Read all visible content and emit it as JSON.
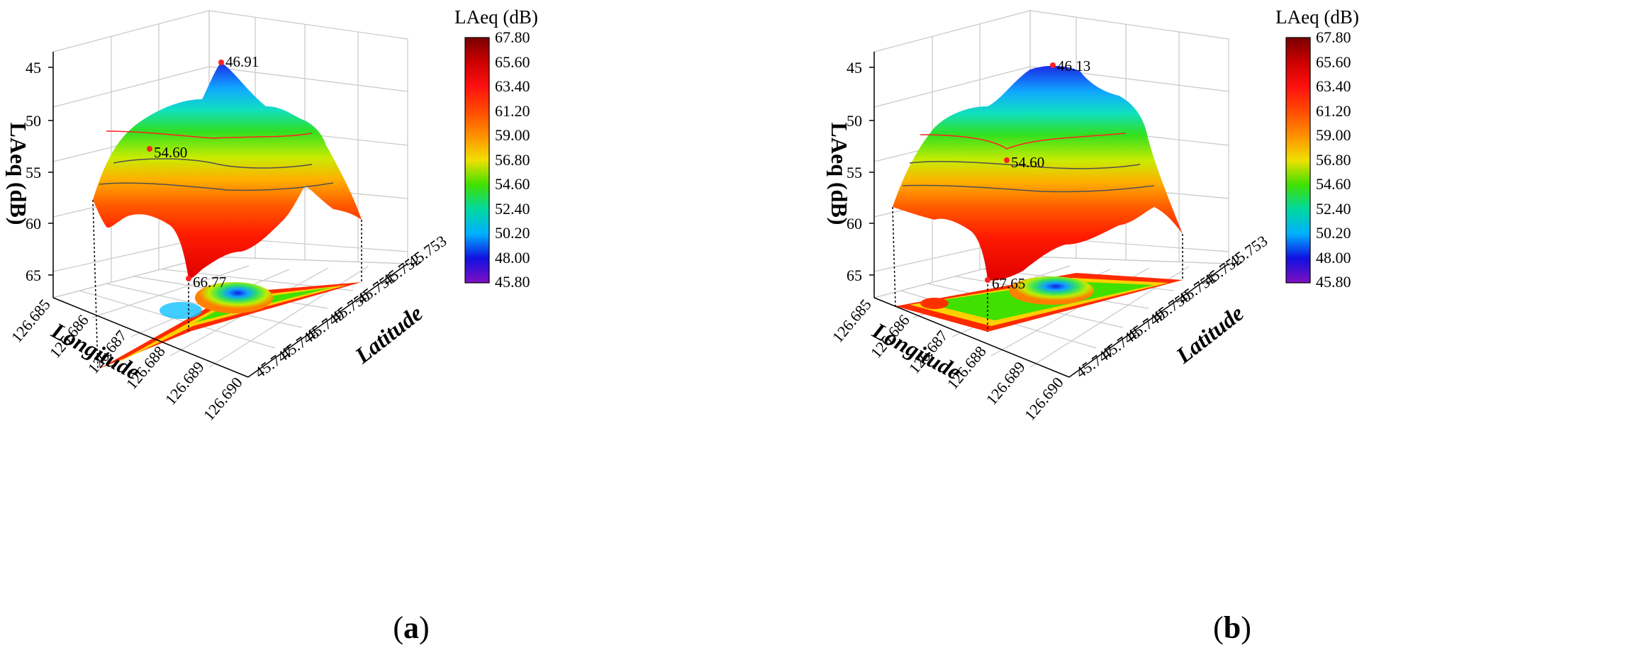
{
  "chart_data": [
    {
      "type": "surface3d",
      "panel_label": "a",
      "colorbar_title": "LAeq (dB)",
      "colorbar_ticks": [
        "67.80",
        "65.60",
        "63.40",
        "61.20",
        "59.00",
        "56.80",
        "54.60",
        "52.40",
        "50.20",
        "48.00",
        "45.80"
      ],
      "colorbar_range": [
        45.8,
        67.8
      ],
      "z_label": "LAeq (dB)",
      "z_ticks": [
        "45",
        "50",
        "55",
        "60",
        "65"
      ],
      "z_reversed": true,
      "x_label": "Longitude",
      "x_ticks": [
        "126.685",
        "126.686",
        "126.687",
        "126.688",
        "126.689",
        "126.690"
      ],
      "y_label": "Latitude",
      "y_ticks": [
        "45.753",
        "45.752",
        "45.751",
        "45.750",
        "45.749",
        "45.748",
        "45.747"
      ],
      "annotations": [
        {
          "label": "46.91",
          "value": 46.91
        },
        {
          "label": "54.60",
          "value": 54.6
        },
        {
          "label": "66.77",
          "value": 66.77
        }
      ]
    },
    {
      "type": "surface3d",
      "panel_label": "b",
      "colorbar_title": "LAeq (dB)",
      "colorbar_ticks": [
        "67.80",
        "65.60",
        "63.40",
        "61.20",
        "59.00",
        "56.80",
        "54.60",
        "52.40",
        "50.20",
        "48.00",
        "45.80"
      ],
      "colorbar_range": [
        45.8,
        67.8
      ],
      "z_label": "LAeq (dB)",
      "z_ticks": [
        "45",
        "50",
        "55",
        "60",
        "65"
      ],
      "z_reversed": true,
      "x_label": "Longitude",
      "x_ticks": [
        "126.685",
        "126.686",
        "126.687",
        "126.688",
        "126.689",
        "126.690"
      ],
      "y_label": "Latitude",
      "y_ticks": [
        "45.753",
        "45.752",
        "45.751",
        "45.750",
        "45.749",
        "45.748",
        "45.747"
      ],
      "annotations": [
        {
          "label": "46.13",
          "value": 46.13
        },
        {
          "label": "54.60",
          "value": 54.6
        },
        {
          "label": "67.65",
          "value": 67.65
        }
      ]
    }
  ],
  "colors": {
    "background": "#ffffff",
    "gridline": "#c8c8c8",
    "axis": "#000000",
    "marker": "#ff2020"
  },
  "captions": {
    "a": {
      "open": "(",
      "letter": "a",
      "close": ")"
    },
    "b": {
      "open": "(",
      "letter": "b",
      "close": ")"
    }
  }
}
